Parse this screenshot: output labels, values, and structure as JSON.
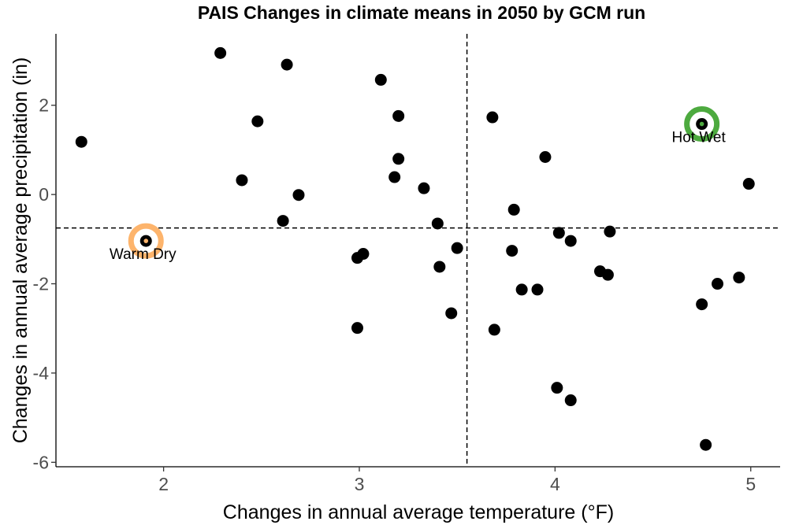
{
  "chart_data": {
    "type": "scatter",
    "title": "PAIS Changes in climate means in 2050 by GCM run",
    "xlabel": "Changes in annual average temperature (°F)",
    "ylabel": "Changes in annual average precipitation (in)",
    "xlim": [
      1.45,
      5.15
    ],
    "ylim": [
      -6.1,
      3.6
    ],
    "xticks": [
      2,
      3,
      4,
      5
    ],
    "yticks": [
      -6,
      -4,
      -2,
      0,
      2
    ],
    "grid": false,
    "reference_lines": {
      "vertical_x": 3.55,
      "horizontal_y": -0.75
    },
    "points": [
      {
        "x": 1.58,
        "y": 1.18
      },
      {
        "x": 1.91,
        "y": -1.04
      },
      {
        "x": 2.29,
        "y": 3.17
      },
      {
        "x": 2.4,
        "y": 0.32
      },
      {
        "x": 2.48,
        "y": 1.64
      },
      {
        "x": 2.61,
        "y": -0.59
      },
      {
        "x": 2.63,
        "y": 2.91
      },
      {
        "x": 2.69,
        "y": -0.01
      },
      {
        "x": 2.99,
        "y": -1.42
      },
      {
        "x": 3.02,
        "y": -1.33
      },
      {
        "x": 2.99,
        "y": -2.99
      },
      {
        "x": 3.11,
        "y": 2.57
      },
      {
        "x": 3.18,
        "y": 0.39
      },
      {
        "x": 3.2,
        "y": 1.76
      },
      {
        "x": 3.2,
        "y": 0.8
      },
      {
        "x": 3.33,
        "y": 0.14
      },
      {
        "x": 3.4,
        "y": -0.65
      },
      {
        "x": 3.41,
        "y": -1.62
      },
      {
        "x": 3.47,
        "y": -2.66
      },
      {
        "x": 3.5,
        "y": -1.2
      },
      {
        "x": 3.68,
        "y": 1.73
      },
      {
        "x": 3.69,
        "y": -3.03
      },
      {
        "x": 3.78,
        "y": -1.26
      },
      {
        "x": 3.79,
        "y": -0.34
      },
      {
        "x": 3.83,
        "y": -2.13
      },
      {
        "x": 3.91,
        "y": -2.13
      },
      {
        "x": 3.95,
        "y": 0.84
      },
      {
        "x": 4.01,
        "y": -4.33
      },
      {
        "x": 4.02,
        "y": -0.86
      },
      {
        "x": 4.08,
        "y": -1.04
      },
      {
        "x": 4.08,
        "y": -4.61
      },
      {
        "x": 4.23,
        "y": -1.72
      },
      {
        "x": 4.27,
        "y": -1.8
      },
      {
        "x": 4.28,
        "y": -0.83
      },
      {
        "x": 4.75,
        "y": 1.58
      },
      {
        "x": 4.75,
        "y": -2.46
      },
      {
        "x": 4.77,
        "y": -5.61
      },
      {
        "x": 4.83,
        "y": -2.0
      },
      {
        "x": 4.94,
        "y": -1.86
      },
      {
        "x": 4.99,
        "y": 0.24
      }
    ],
    "highlights": [
      {
        "label": "Warm Dry",
        "x": 1.91,
        "y": -1.04,
        "color": "#FDB46C"
      },
      {
        "label": "Hot Wet",
        "x": 4.75,
        "y": 1.58,
        "color": "#4DAA3F"
      }
    ]
  }
}
